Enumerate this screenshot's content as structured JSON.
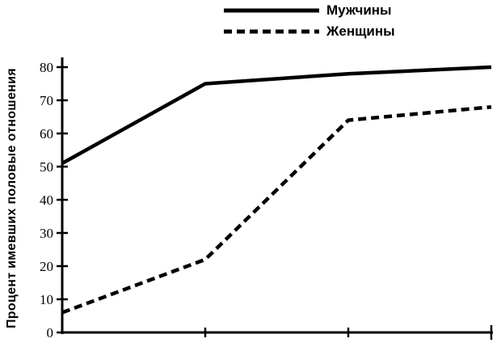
{
  "figure": {
    "background": "#ffffff",
    "ink_color": "#000000"
  },
  "chart_data": {
    "type": "line",
    "title": "",
    "xlabel": "",
    "ylabel": "Процент имевших половые отношения",
    "ylim": [
      0,
      80
    ],
    "y_ticks": [
      0,
      10,
      20,
      30,
      40,
      50,
      60,
      70,
      80
    ],
    "x_tick_count": 4,
    "x_tick_labels": [
      "",
      "",
      "",
      ""
    ],
    "grid": false,
    "legend_position": "top-center",
    "series": [
      {
        "name": "Мужчины",
        "style": "solid",
        "color": "#000000",
        "values": [
          51,
          75,
          78,
          80
        ]
      },
      {
        "name": "Женщины",
        "style": "dashed",
        "color": "#000000",
        "values": [
          6,
          22,
          64,
          68
        ]
      }
    ]
  }
}
